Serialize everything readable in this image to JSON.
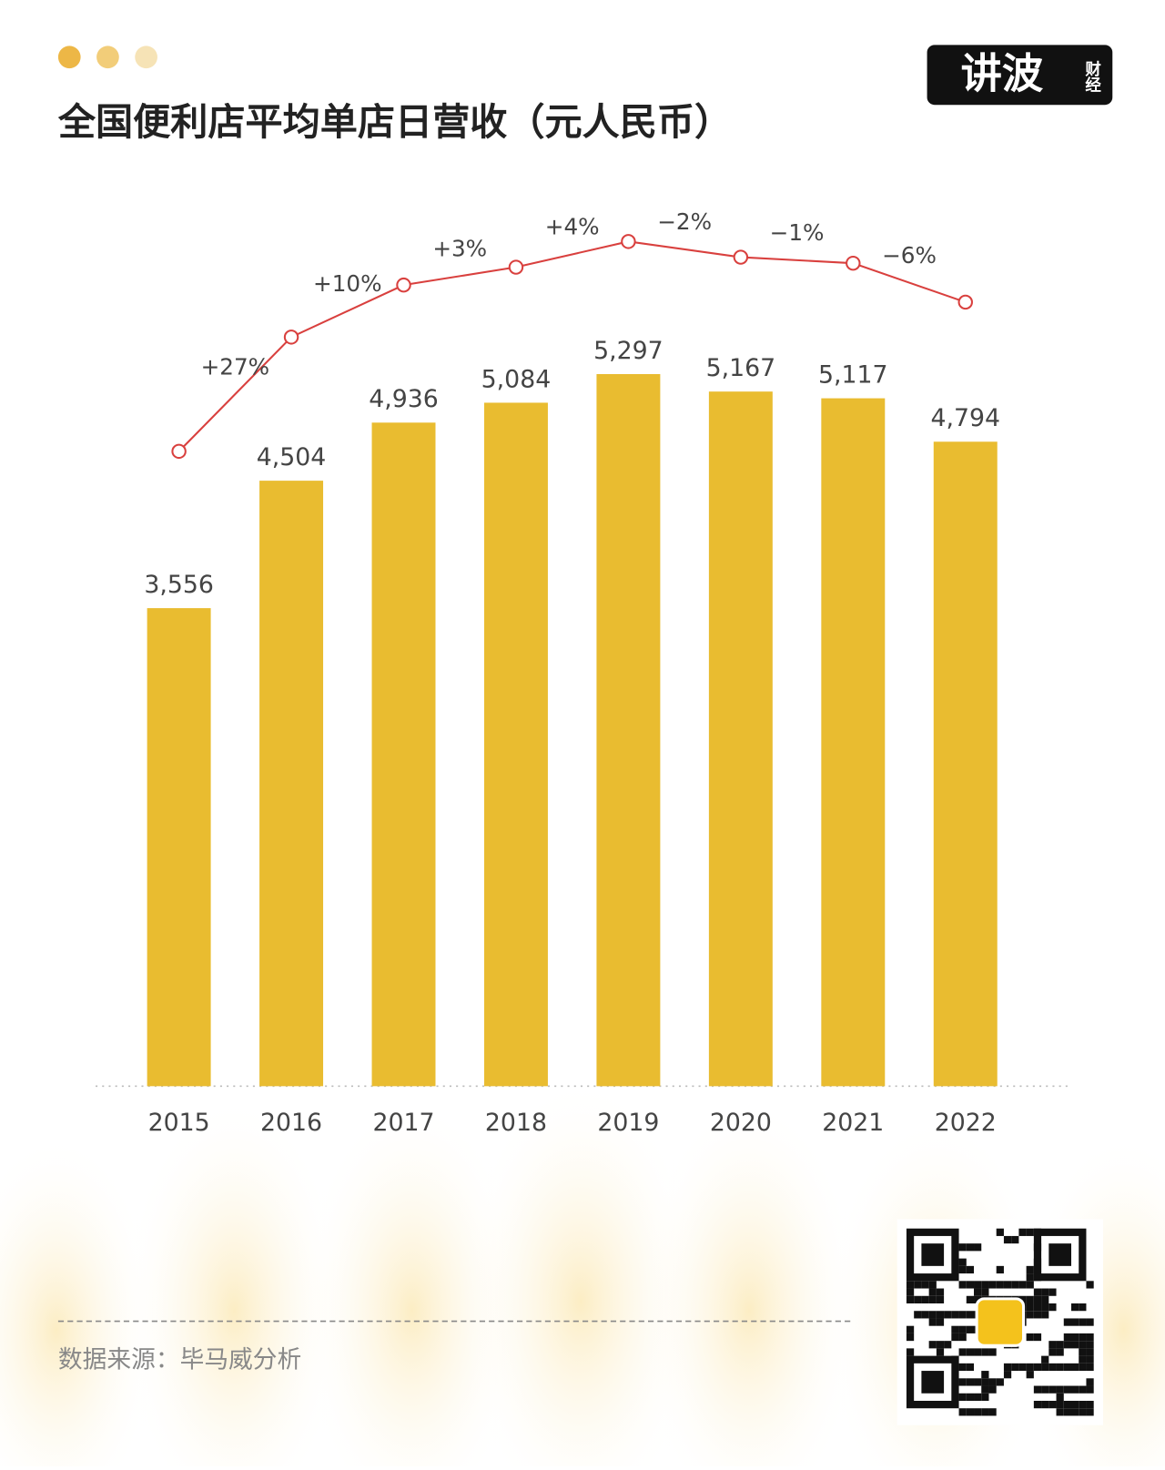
{
  "chart_data": {
    "type": "bar",
    "title": "全国便利店平均单店日营收（元人民币）",
    "categories": [
      "2015",
      "2016",
      "2017",
      "2018",
      "2019",
      "2020",
      "2021",
      "2022"
    ],
    "values": [
      3556,
      4504,
      4936,
      5084,
      5297,
      5167,
      5117,
      4794
    ],
    "value_labels": [
      "3,556",
      "4,504",
      "4,936",
      "5,084",
      "5,297",
      "5,167",
      "5,117",
      "4,794"
    ],
    "color": "#e9bc30",
    "line_color": "#d9403e",
    "ylim": [
      0,
      5600
    ],
    "growth_categories": [
      "2016",
      "2017",
      "2018",
      "2019",
      "2020",
      "2021",
      "2022"
    ],
    "growth_values": [
      27,
      10,
      3,
      4,
      -2,
      -1,
      -6
    ],
    "growth_labels": [
      "+27%",
      "+10%",
      "+3%",
      "+4%",
      "−2%",
      "−1%",
      "−6%"
    ],
    "source": "数据来源：毕马威分析",
    "logo": "讲波",
    "logo_sub": "财经"
  }
}
